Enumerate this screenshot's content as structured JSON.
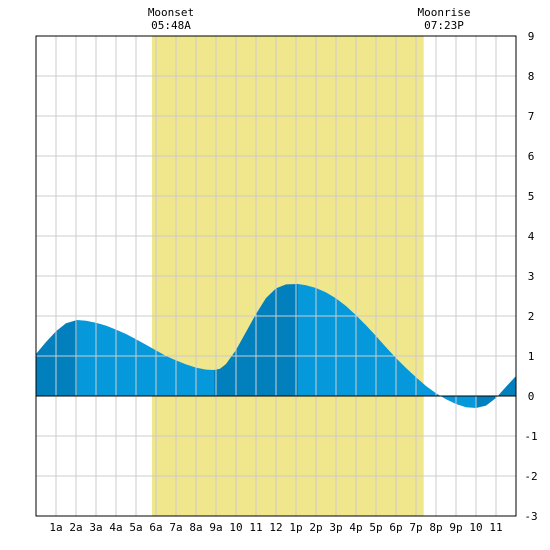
{
  "chart_data": {
    "type": "area",
    "title": "",
    "xlabel": "",
    "ylabel": "",
    "xlim": [
      0,
      24
    ],
    "ylim": [
      -3,
      9
    ],
    "grid": true,
    "x_ticks": [
      {
        "x": 1,
        "label": "1a"
      },
      {
        "x": 2,
        "label": "2a"
      },
      {
        "x": 3,
        "label": "3a"
      },
      {
        "x": 4,
        "label": "4a"
      },
      {
        "x": 5,
        "label": "5a"
      },
      {
        "x": 6,
        "label": "6a"
      },
      {
        "x": 7,
        "label": "7a"
      },
      {
        "x": 8,
        "label": "8a"
      },
      {
        "x": 9,
        "label": "9a"
      },
      {
        "x": 10,
        "label": "10"
      },
      {
        "x": 11,
        "label": "11"
      },
      {
        "x": 12,
        "label": "12"
      },
      {
        "x": 13,
        "label": "1p"
      },
      {
        "x": 14,
        "label": "2p"
      },
      {
        "x": 15,
        "label": "3p"
      },
      {
        "x": 16,
        "label": "4p"
      },
      {
        "x": 17,
        "label": "5p"
      },
      {
        "x": 18,
        "label": "6p"
      },
      {
        "x": 19,
        "label": "7p"
      },
      {
        "x": 20,
        "label": "8p"
      },
      {
        "x": 21,
        "label": "9p"
      },
      {
        "x": 22,
        "label": "10"
      },
      {
        "x": 23,
        "label": "11"
      }
    ],
    "y_ticks": [
      -3,
      -2,
      -1,
      0,
      1,
      2,
      3,
      4,
      5,
      6,
      7,
      8,
      9
    ],
    "extremes": [
      {
        "x": 2.05,
        "y": 1.9
      },
      {
        "x": 8.9,
        "y": 0.65
      },
      {
        "x": 13.1,
        "y": 2.8
      },
      {
        "x": 22.0,
        "y": -0.3
      }
    ],
    "series": [
      {
        "values": [
          [
            0.0,
            1.05
          ],
          [
            0.5,
            1.35
          ],
          [
            1.0,
            1.62
          ],
          [
            1.5,
            1.82
          ],
          [
            2.05,
            1.9
          ],
          [
            2.5,
            1.88
          ],
          [
            3.0,
            1.83
          ],
          [
            3.5,
            1.76
          ],
          [
            4.0,
            1.66
          ],
          [
            4.5,
            1.55
          ],
          [
            5.0,
            1.42
          ],
          [
            5.5,
            1.28
          ],
          [
            6.0,
            1.14
          ],
          [
            6.5,
            1.0
          ],
          [
            7.0,
            0.89
          ],
          [
            7.5,
            0.79
          ],
          [
            8.0,
            0.71
          ],
          [
            8.5,
            0.66
          ],
          [
            8.9,
            0.65
          ],
          [
            9.2,
            0.68
          ],
          [
            9.5,
            0.8
          ],
          [
            10.0,
            1.15
          ],
          [
            10.5,
            1.6
          ],
          [
            11.0,
            2.05
          ],
          [
            11.5,
            2.45
          ],
          [
            12.0,
            2.69
          ],
          [
            12.5,
            2.79
          ],
          [
            13.1,
            2.8
          ],
          [
            13.5,
            2.77
          ],
          [
            14.0,
            2.7
          ],
          [
            14.5,
            2.59
          ],
          [
            15.0,
            2.44
          ],
          [
            15.5,
            2.25
          ],
          [
            16.0,
            2.02
          ],
          [
            16.5,
            1.77
          ],
          [
            17.0,
            1.5
          ],
          [
            17.5,
            1.22
          ],
          [
            18.0,
            0.95
          ],
          [
            18.5,
            0.7
          ],
          [
            19.0,
            0.47
          ],
          [
            19.5,
            0.25
          ],
          [
            20.0,
            0.07
          ],
          [
            20.5,
            -0.08
          ],
          [
            21.0,
            -0.2
          ],
          [
            21.5,
            -0.28
          ],
          [
            22.0,
            -0.3
          ],
          [
            22.5,
            -0.24
          ],
          [
            23.0,
            -0.05
          ],
          [
            23.5,
            0.23
          ],
          [
            24.0,
            0.5
          ]
        ]
      }
    ],
    "moon_band": {
      "start": 5.8,
      "end": 19.383
    },
    "moonset": {
      "label": "Moonset",
      "time": "05:48A"
    },
    "moonrise": {
      "label": "Moonrise",
      "time": "07:23P"
    }
  },
  "colors": {
    "background": "#ffffff",
    "moon_band": "#f0e68c",
    "tide_light": "#0599dc",
    "tide_dark": "#0280bd",
    "grid": "#cccccc",
    "zero_line": "#000000",
    "frame": "#000000"
  }
}
